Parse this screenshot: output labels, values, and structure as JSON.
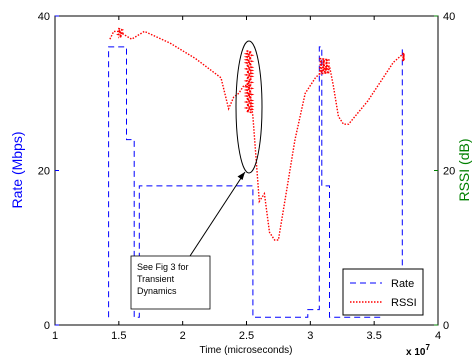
{
  "chart_data": {
    "type": "line",
    "xlabel": "Time (microseconds)",
    "x_multiplier_label": "x 10",
    "x_multiplier_exp": "7",
    "ylabel_left": "Rate (Mbps)",
    "ylabel_right": "RSSI (dB)",
    "xlim": [
      1,
      4
    ],
    "ylim_left": [
      0,
      40
    ],
    "ylim_right": [
      0,
      40
    ],
    "xticks": [
      1,
      1.5,
      2,
      2.5,
      3,
      3.5,
      4
    ],
    "xtick_labels": [
      "1",
      "1.5",
      "2",
      "2.5",
      "3",
      "3.5",
      "4"
    ],
    "yticks_left": [
      0,
      20,
      40
    ],
    "ytick_labels_left": [
      "0",
      "20",
      "40"
    ],
    "yticks_right": [
      0,
      20,
      40
    ],
    "ytick_labels_right": [
      "0",
      "20",
      "40"
    ],
    "colors": {
      "left_axis": "#0000ff",
      "right_axis": "#008000",
      "rate": "#0000ff",
      "rssi": "#ff0000"
    },
    "legend_position": "lower-right",
    "series": [
      {
        "name": "Rate",
        "style": "dashed",
        "color": "#0000ff",
        "x": [
          1.42,
          1.42,
          1.5,
          1.5,
          1.56,
          1.56,
          1.62,
          1.62,
          1.66,
          1.66,
          2.55,
          2.55,
          2.57,
          2.57,
          2.98,
          2.98,
          3.07,
          3.07,
          3.09,
          3.09,
          3.15,
          3.15,
          3.55,
          3.55,
          3.72,
          3.72
        ],
        "values": [
          1,
          36,
          36,
          36,
          36,
          24,
          24,
          1,
          1,
          18,
          18,
          1,
          1,
          1,
          1,
          2,
          2,
          36,
          36,
          18,
          18,
          1,
          1,
          2,
          2,
          36
        ]
      },
      {
        "name": "RSSI",
        "style": "dotted",
        "color": "#ff0000",
        "x": [
          1.43,
          1.46,
          1.5,
          1.55,
          1.6,
          1.7,
          1.9,
          2.1,
          2.3,
          2.36,
          2.4,
          2.44,
          2.48,
          2.52,
          2.55,
          2.6,
          2.64,
          2.68,
          2.72,
          2.75,
          2.8,
          2.88,
          2.96,
          3.04,
          3.1,
          3.15,
          3.18,
          3.22,
          3.26,
          3.3,
          3.35,
          3.45,
          3.55,
          3.65,
          3.72
        ],
        "values": [
          37,
          38,
          38,
          37.5,
          37,
          38,
          36.5,
          34.5,
          32,
          28,
          29.5,
          30,
          31,
          31,
          27,
          16,
          17,
          12,
          11,
          11,
          16,
          24,
          30,
          32,
          33,
          33.5,
          31,
          27,
          26,
          26,
          27,
          29,
          31.5,
          34,
          35
        ]
      }
    ],
    "annotation": "See Fig 3 for Transient Dynamics"
  }
}
